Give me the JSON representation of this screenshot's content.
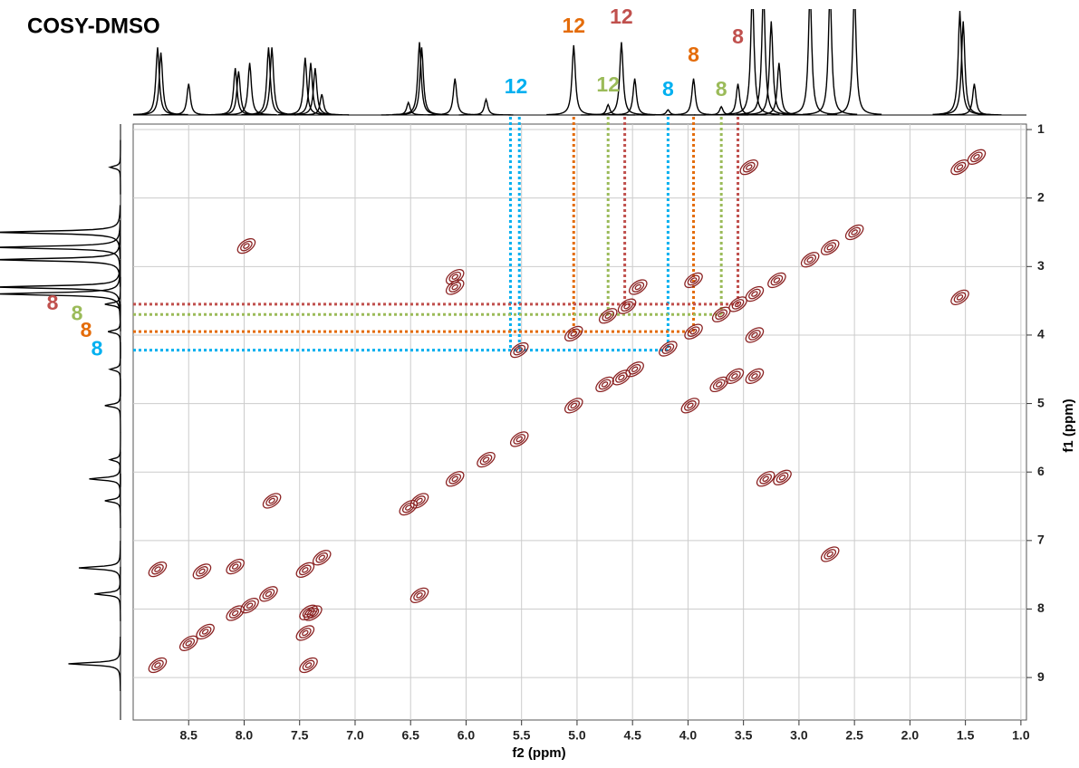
{
  "chart_data": {
    "type": "cosy",
    "title": "COSY-DMSO",
    "x_label": "f2 (ppm)",
    "y_label": "f1 (ppm)",
    "xlim": [
      9.0,
      0.95
    ],
    "ylim": [
      0.92,
      9.62
    ],
    "xticks": [
      8.5,
      {
        "value": 8,
        "label": "8.0"
      },
      7.5,
      {
        "value": 7,
        "label": "7.0"
      },
      6.5,
      {
        "value": 6,
        "label": "6.0"
      },
      5.5,
      {
        "value": 5,
        "label": "5.0"
      },
      4.5,
      {
        "value": 4,
        "label": "4.0"
      },
      3.5,
      {
        "value": 3,
        "label": "3.0"
      },
      2.5,
      {
        "value": 2,
        "label": "2.0"
      },
      1.5,
      {
        "value": 1,
        "label": "1.0"
      }
    ],
    "yticks": [
      1,
      2,
      3,
      4,
      5,
      6,
      7,
      8,
      9
    ],
    "grid": true,
    "contour_color": "#8b2323",
    "cross_peaks": {
      "x": [
        8.78,
        8.5,
        8.35,
        8.08,
        7.95,
        7.78,
        7.45,
        7.3,
        6.52,
        6.42,
        6.1,
        5.82,
        5.52,
        5.03,
        4.75,
        4.6,
        4.48,
        4.18,
        3.95,
        3.7,
        3.55,
        3.4,
        3.2,
        2.9,
        2.72,
        2.5,
        1.55,
        1.4,
        8.78,
        7.42,
        8.08,
        7.38,
        7.75,
        6.42,
        7.45,
        7.42,
        6.1,
        6.1,
        3.15,
        3.3,
        5.03,
        3.98,
        4.55,
        3.58,
        4.72,
        3.72,
        5.52,
        1.55,
        3.45,
        4.45,
        3.95,
        3.4,
        3.4,
        8.38,
        7.98,
        2.72
      ],
      "y": [
        8.82,
        8.5,
        8.33,
        8.06,
        7.95,
        7.78,
        7.43,
        7.25,
        6.52,
        6.42,
        6.1,
        5.82,
        5.52,
        5.03,
        4.72,
        4.62,
        4.5,
        4.2,
        3.95,
        3.7,
        3.55,
        3.4,
        3.2,
        2.9,
        2.72,
        2.5,
        1.55,
        1.4,
        7.42,
        8.82,
        7.38,
        8.06,
        6.42,
        7.8,
        8.35,
        8.05,
        3.15,
        3.3,
        6.08,
        6.1,
        3.98,
        5.03,
        3.58,
        4.6,
        3.72,
        4.72,
        4.22,
        3.45,
        1.55,
        3.3,
        3.2,
        4.0,
        4.6,
        7.45,
        2.7,
        7.2
      ]
    },
    "f2_projection": {
      "x": [
        8.78,
        8.75,
        8.5,
        8.08,
        8.05,
        7.95,
        7.78,
        7.75,
        7.45,
        7.4,
        7.36,
        7.3,
        6.52,
        6.42,
        6.4,
        6.1,
        5.82,
        5.03,
        4.72,
        4.6,
        4.48,
        4.18,
        3.95,
        3.7,
        3.55,
        3.42,
        3.32,
        3.25,
        3.18,
        2.9,
        2.72,
        2.5,
        1.55,
        1.52,
        1.42
      ],
      "intensity": [
        0.65,
        0.6,
        0.3,
        0.45,
        0.42,
        0.5,
        0.65,
        0.65,
        0.55,
        0.5,
        0.45,
        0.2,
        0.12,
        0.7,
        0.65,
        0.35,
        0.15,
        0.67,
        0.1,
        0.7,
        0.35,
        0.05,
        0.35,
        0.08,
        0.3,
        1.2,
        1.2,
        0.9,
        0.5,
        1.2,
        1.2,
        1.2,
        1.0,
        0.9,
        0.3
      ]
    },
    "f1_projection": {
      "y": [
        1.55,
        2.5,
        2.72,
        2.9,
        3.3,
        3.4,
        3.55,
        3.95,
        4.5,
        5.03,
        5.82,
        6.1,
        6.42,
        7.4,
        7.78,
        8.8
      ],
      "intensity": [
        0.1,
        1.2,
        1.2,
        1.2,
        1.2,
        1.2,
        0.15,
        0.12,
        0.1,
        0.15,
        0.1,
        0.3,
        0.15,
        0.4,
        0.25,
        0.5
      ]
    },
    "top_labels": [
      {
        "text": "12",
        "color": "#00b0f0",
        "x": 5.55
      },
      {
        "text": "12",
        "color": "#e46c0a",
        "x": 5.03
      },
      {
        "text": "12",
        "color": "#9bbb59",
        "x": 4.72
      },
      {
        "text": "12",
        "color": "#c0504d",
        "x": 4.6
      },
      {
        "text": "8",
        "color": "#00b0f0",
        "x": 4.18
      },
      {
        "text": "8",
        "color": "#e46c0a",
        "x": 3.95
      },
      {
        "text": "8",
        "color": "#9bbb59",
        "x": 3.7
      },
      {
        "text": "8",
        "color": "#c0504d",
        "x": 3.55
      }
    ],
    "side_labels": [
      {
        "text": "8",
        "color": "#c0504d",
        "y": 3.55
      },
      {
        "text": "8",
        "color": "#9bbb59",
        "y": 3.7
      },
      {
        "text": "8",
        "color": "#e46c0a",
        "y": 3.95
      },
      {
        "text": "8",
        "color": "#00b0f0",
        "y": 4.22
      }
    ],
    "vertical_guides": [
      {
        "color": "#00b0f0",
        "x": 5.6,
        "to": 4.22
      },
      {
        "color": "#00b0f0",
        "x": 5.52,
        "to": 4.22
      },
      {
        "color": "#e46c0a",
        "x": 5.03,
        "to": 3.95
      },
      {
        "color": "#9bbb59",
        "x": 4.72,
        "to": 3.7
      },
      {
        "color": "#c0504d",
        "x": 4.57,
        "to": 3.55
      },
      {
        "color": "#00b0f0",
        "x": 4.18,
        "to": 4.22
      },
      {
        "color": "#e46c0a",
        "x": 3.95,
        "to": 3.95
      },
      {
        "color": "#9bbb59",
        "x": 3.7,
        "to": 3.7
      },
      {
        "color": "#c0504d",
        "x": 3.55,
        "to": 3.55
      }
    ],
    "horizontal_guides": [
      {
        "color": "#c0504d",
        "y": 3.55,
        "to": 3.55
      },
      {
        "color": "#9bbb59",
        "y": 3.7,
        "to": 3.7
      },
      {
        "color": "#e46c0a",
        "y": 3.95,
        "to": 3.95
      },
      {
        "color": "#00b0f0",
        "y": 4.22,
        "to": 4.18
      }
    ]
  }
}
